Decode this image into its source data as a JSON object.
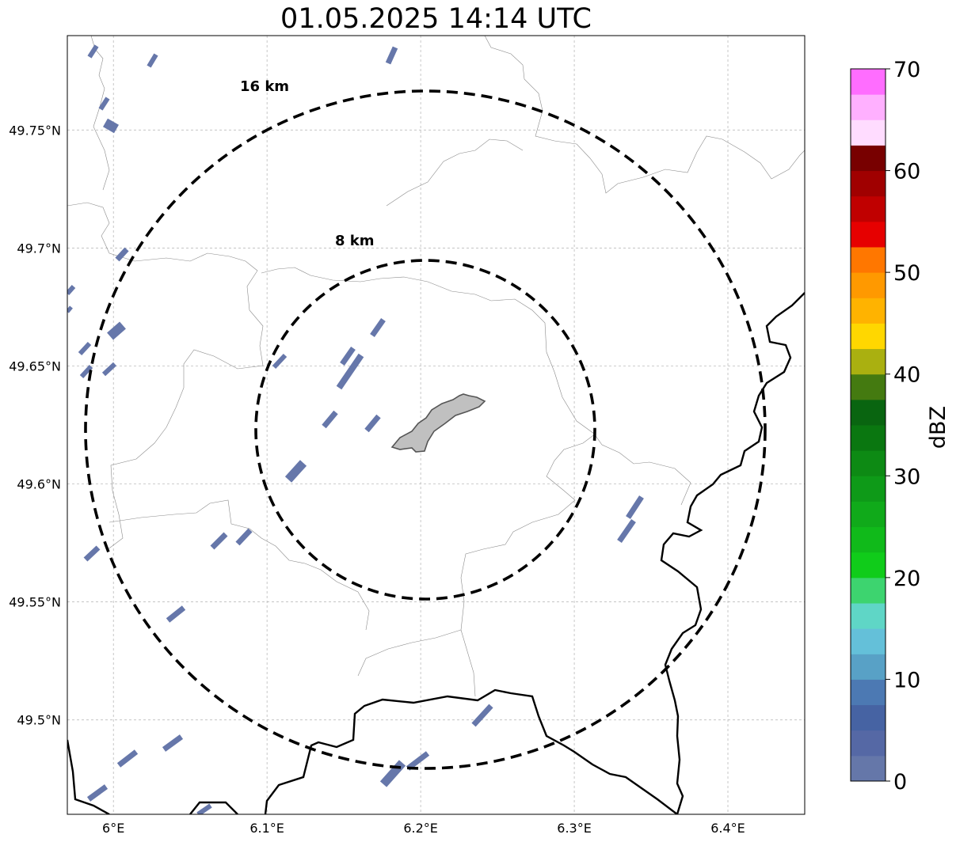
{
  "title": "01.05.2025 14:14 UTC",
  "map": {
    "lon_range": [
      5.97,
      6.45
    ],
    "lat_range": [
      49.46,
      49.79
    ],
    "lon_ticks": [
      {
        "value": 6.0,
        "label": "6°E"
      },
      {
        "value": 6.1,
        "label": "6.1°E"
      },
      {
        "value": 6.2,
        "label": "6.2°E"
      },
      {
        "value": 6.3,
        "label": "6.3°E"
      },
      {
        "value": 6.4,
        "label": "6.4°E"
      }
    ],
    "lat_ticks": [
      {
        "value": 49.75,
        "label": "49.75°N"
      },
      {
        "value": 49.7,
        "label": "49.7°N"
      },
      {
        "value": 49.65,
        "label": "49.65°N"
      },
      {
        "value": 49.6,
        "label": "49.6°N"
      },
      {
        "value": 49.55,
        "label": "49.55°N"
      },
      {
        "value": 49.5,
        "label": "49.5°N"
      }
    ],
    "grid": true,
    "range_rings": [
      {
        "label": "8 km",
        "radius_km": 8
      },
      {
        "label": "16 km",
        "radius_km": 16
      }
    ],
    "center_area_color": "#c0c0c0",
    "echo_color": "#6677aa"
  },
  "colorbar": {
    "label": "dBZ",
    "min": 0,
    "max": 70,
    "step": 2.5,
    "tick_labels": [
      "0",
      "10",
      "20",
      "30",
      "40",
      "50",
      "60",
      "70"
    ],
    "colors": [
      "#6577a9",
      "#5568a5",
      "#4663a3",
      "#4c79b3",
      "#58a1c6",
      "#64c0d9",
      "#5fd6c6",
      "#3dd46f",
      "#10cc1a",
      "#10ba1a",
      "#10aa1a",
      "#0e9a18",
      "#0d8a14",
      "#0a7710",
      "#096510",
      "#447a10",
      "#aab010",
      "#ffd700",
      "#ffb300",
      "#ff9900",
      "#ff7700",
      "#e60000",
      "#c00000",
      "#a00000",
      "#780000",
      "#ffdcff",
      "#ffb0ff",
      "#ff6dff",
      "#ee35ee"
    ]
  }
}
